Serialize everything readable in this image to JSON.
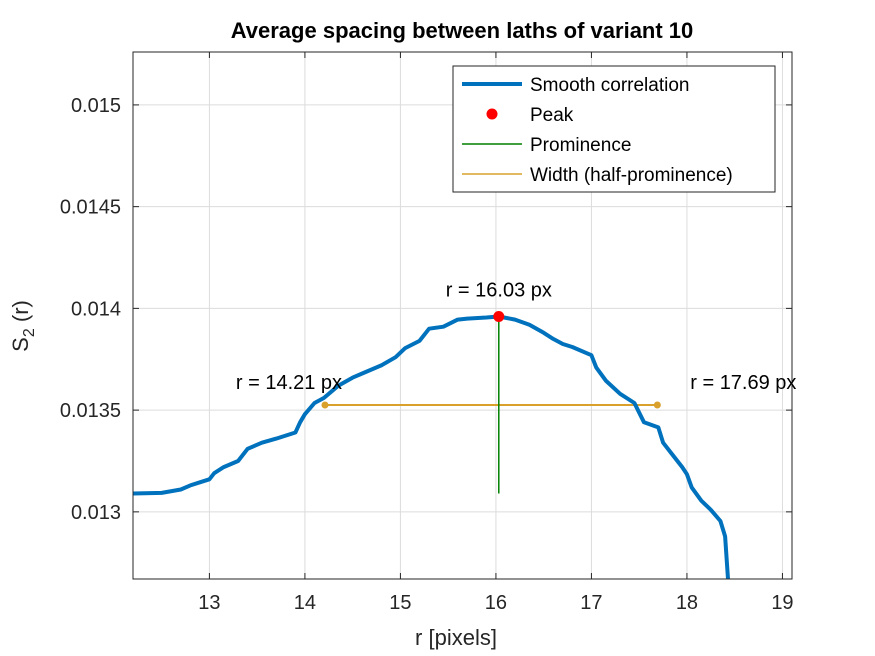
{
  "chart_data": {
    "type": "line",
    "title": "Average spacing between laths of variant 10",
    "xlabel": "r [pixels]",
    "ylabel": "S",
    "ylabel_sub": "2",
    "ylabel_suffix": " (r)",
    "xlim": [
      12.2,
      19.1
    ],
    "ylim": [
      0.01267,
      0.01526
    ],
    "xticks": [
      13,
      14,
      15,
      16,
      17,
      18,
      19
    ],
    "xtick_labels": [
      "13",
      "14",
      "15",
      "16",
      "17",
      "18",
      "19"
    ],
    "yticks": [
      0.013,
      0.0135,
      0.014,
      0.0145,
      0.015
    ],
    "ytick_labels": [
      "0.013",
      "0.0135",
      "0.014",
      "0.0145",
      "0.015"
    ],
    "grid": true,
    "legend_position": "top-right",
    "colors": {
      "curve": "#0072BD",
      "peak": "#FF0000",
      "prominence": "#008000",
      "width": "#D9A02B",
      "grid": "#dcdcdc",
      "axes": "#262626"
    },
    "series": [
      {
        "name": "Smooth correlation",
        "x": [
          12.2,
          12.5,
          12.7,
          12.8,
          12.9,
          13.0,
          13.05,
          13.15,
          13.3,
          13.4,
          13.5,
          13.55,
          13.7,
          13.9,
          13.95,
          14.0,
          14.1,
          14.2,
          14.35,
          14.5,
          14.6,
          14.8,
          14.95,
          15.05,
          15.2,
          15.3,
          15.45,
          15.6,
          15.7,
          15.9,
          16.03,
          16.2,
          16.35,
          16.5,
          16.6,
          16.7,
          16.8,
          17.0,
          17.05,
          17.15,
          17.3,
          17.45,
          17.55,
          17.7,
          17.75,
          17.85,
          17.95,
          18.0,
          18.05,
          18.15,
          18.25,
          18.35,
          18.4,
          18.43
        ],
        "y": [
          0.01309,
          0.013093,
          0.01311,
          0.01313,
          0.013145,
          0.01316,
          0.01319,
          0.01322,
          0.01325,
          0.01331,
          0.01333,
          0.01334,
          0.01336,
          0.01339,
          0.01344,
          0.01348,
          0.013535,
          0.01356,
          0.01362,
          0.01366,
          0.01368,
          0.01372,
          0.01376,
          0.013805,
          0.01384,
          0.0139,
          0.01391,
          0.013945,
          0.01395,
          0.013955,
          0.01396,
          0.013945,
          0.01392,
          0.01388,
          0.01385,
          0.013825,
          0.01381,
          0.01377,
          0.01371,
          0.013645,
          0.01358,
          0.013535,
          0.01344,
          0.013415,
          0.01334,
          0.01328,
          0.01322,
          0.013185,
          0.01312,
          0.013055,
          0.01301,
          0.012955,
          0.01288,
          0.01267
        ]
      },
      {
        "name": "Peak",
        "x": [
          16.03
        ],
        "y": [
          0.01396
        ]
      },
      {
        "name": "Prominence",
        "x": [
          16.03,
          16.03
        ],
        "y": [
          0.01396,
          0.01309
        ]
      },
      {
        "name": "Width (half-prominence)",
        "x": [
          14.21,
          17.69
        ],
        "y": [
          0.013525,
          0.013525
        ]
      }
    ],
    "annotations": [
      {
        "text": "r = 16.03 px",
        "x": 16.03,
        "y": 0.01396
      },
      {
        "text": "r = 14.21 px",
        "x": 14.21,
        "y": 0.013525
      },
      {
        "text": "r = 17.69 px",
        "x": 17.69,
        "y": 0.013525
      }
    ]
  }
}
